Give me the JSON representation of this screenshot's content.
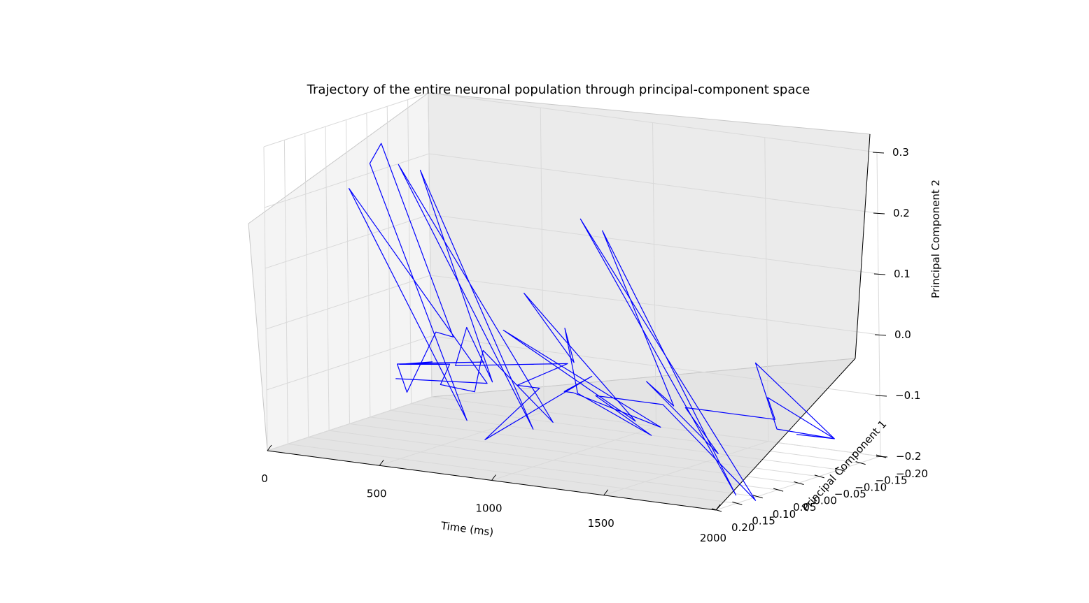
{
  "chart_data": {
    "type": "line",
    "projection": "3d",
    "title": "Trajectory of the entire neuronal population through principal-component space",
    "xlabel": "Time (ms)",
    "ylabel": "Principal Component 1",
    "zlabel": "Principal Component 2",
    "xlim": [
      0,
      2000
    ],
    "ylim": [
      -0.2,
      0.2
    ],
    "zlim": [
      -0.2,
      0.3
    ],
    "x_ticks": [
      "0",
      "500",
      "1000",
      "1500",
      "2000"
    ],
    "y_ticks": [
      "−0.20",
      "−0.15",
      "−0.10",
      "−0.05",
      "0.00",
      "0.05",
      "0.10",
      "0.15",
      "0.20"
    ],
    "z_ticks": [
      "−0.2",
      "−0.1",
      "0.0",
      "0.1",
      "0.2",
      "0.3"
    ],
    "grid": true,
    "line_color": "#0000ff",
    "series": [
      {
        "x": [
          300,
          340,
          378,
          340,
          380,
          340,
          375,
          390,
          350,
          400,
          420,
          395,
          372,
          410,
          450,
          500,
          560,
          600,
          632,
          600,
          635,
          605,
          640,
          620,
          660,
          700,
          750,
          800,
          850,
          880,
          900,
          960,
          1000,
          1020,
          1060,
          1000,
          1062,
          1005,
          1058,
          1020,
          1070,
          1100,
          1150,
          1200,
          1250,
          1300,
          1350,
          1400,
          1440,
          1410,
          1445,
          1415,
          1448,
          1420,
          1460,
          1500,
          1550,
          1600,
          1700,
          1800,
          1900,
          1960,
          1980,
          2000,
          2000,
          1980,
          1995
        ],
        "y": [
          0.05,
          -0.15,
          0.2,
          -0.1,
          0.15,
          0.1,
          -0.05,
          0.0,
          0.05,
          0.1,
          -0.1,
          0.05,
          0.0,
          0.1,
          0.0,
          0.05,
          0.0,
          0.0,
          -0.15,
          0.2,
          -0.1,
          0.15,
          0.0,
          0.05,
          0.1,
          -0.15,
          0.0,
          0.0,
          0.0,
          0.15,
          -0.1,
          0.0,
          0.0,
          -0.2,
          0.2,
          -0.15,
          0.15,
          0.0,
          0.05,
          0.0,
          -0.15,
          0.0,
          0.0,
          0.0,
          0.0,
          0.0,
          0.0,
          0.0,
          -0.2,
          0.2,
          -0.15,
          0.15,
          0.0,
          0.05,
          -0.1,
          0.0,
          0.0,
          0.0,
          0.0,
          0.0,
          0.0,
          0.05,
          -0.1,
          0.1,
          0.05,
          -0.1,
          0.0
        ],
        "z": [
          -0.1,
          -0.15,
          0.25,
          -0.2,
          0.28,
          0.3,
          -0.05,
          -0.03,
          -0.12,
          -0.06,
          -0.1,
          -0.07,
          -0.08,
          -0.06,
          -0.08,
          -0.1,
          -0.12,
          -0.05,
          -0.2,
          0.3,
          -0.2,
          0.28,
          -0.1,
          0.0,
          -0.05,
          -0.1,
          -0.1,
          -0.1,
          -0.1,
          -0.15,
          -0.1,
          -0.1,
          -0.1,
          -0.2,
          0.05,
          -0.18,
          0.1,
          -0.05,
          0.02,
          -0.1,
          -0.2,
          -0.1,
          -0.1,
          -0.1,
          -0.1,
          -0.1,
          -0.1,
          -0.1,
          -0.3,
          0.25,
          -0.28,
          0.22,
          -0.1,
          -0.05,
          -0.2,
          -0.1,
          -0.1,
          -0.1,
          -0.1,
          -0.1,
          -0.1,
          -0.05,
          -0.15,
          0.02,
          -0.1,
          -0.15,
          -0.12
        ]
      }
    ]
  }
}
